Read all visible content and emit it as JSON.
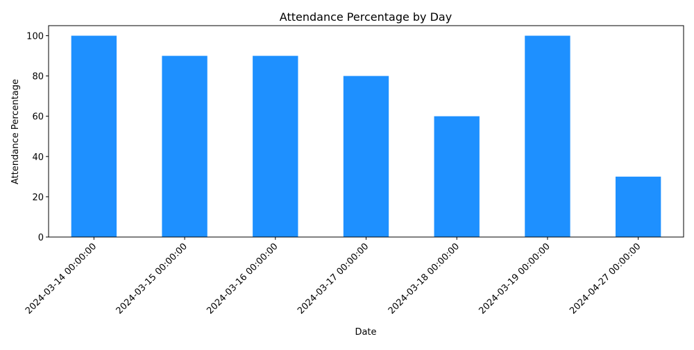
{
  "chart_data": {
    "type": "bar",
    "title": "Attendance Percentage by Day",
    "xlabel": "Date",
    "ylabel": "Attendance Percentage",
    "categories": [
      "2024-03-14 00:00:00",
      "2024-03-15 00:00:00",
      "2024-03-16 00:00:00",
      "2024-03-17 00:00:00",
      "2024-03-18 00:00:00",
      "2024-03-19 00:00:00",
      "2024-04-27 00:00:00"
    ],
    "values": [
      100,
      90,
      90,
      80,
      60,
      100,
      30
    ],
    "ylim": [
      0,
      105
    ],
    "yticks": [
      0,
      20,
      40,
      60,
      80,
      100
    ],
    "bar_color": "#1e90ff",
    "grid": false,
    "legend": "none"
  }
}
